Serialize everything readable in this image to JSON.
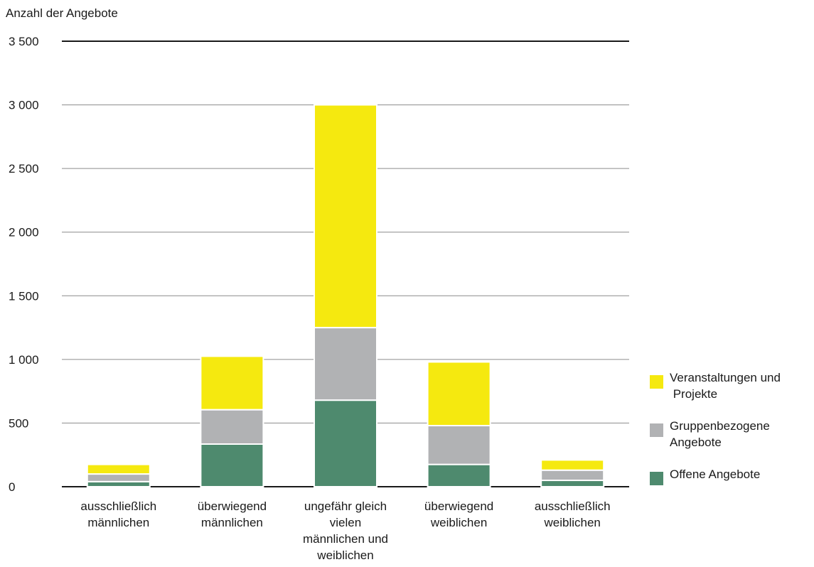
{
  "chart_data": {
    "type": "bar",
    "stacked": true,
    "ylabel": "Anzahl der Angebote",
    "ylim": [
      0,
      3500
    ],
    "yticks": [
      0,
      500,
      1000,
      1500,
      2000,
      2500,
      3000,
      3500
    ],
    "ytick_labels": [
      "0",
      "500",
      "1 000",
      "1 500",
      "2 000",
      "2 500",
      "3 000",
      "3 500"
    ],
    "grid": true,
    "legend_position": "right",
    "categories": [
      [
        "ausschließlich",
        "männlichen"
      ],
      [
        "überwiegend",
        "männlichen"
      ],
      [
        "ungefähr gleich",
        "vielen",
        "männlichen und",
        "weiblichen"
      ],
      [
        "überwiegend",
        "weiblichen"
      ],
      [
        "ausschließlich",
        "weiblichen"
      ]
    ],
    "series": [
      {
        "name": "Offene Angebote",
        "color": "#4e8a6e",
        "values": [
          40,
          335,
          680,
          175,
          50
        ]
      },
      {
        "name": "Gruppenbezogene Angebote",
        "color": "#b1b2b4",
        "values": [
          60,
          270,
          570,
          305,
          80
        ]
      },
      {
        "name": "Veranstaltungen und Projekte",
        "color": "#f5e90f",
        "values": [
          75,
          420,
          1750,
          500,
          80
        ]
      }
    ]
  },
  "legend": [
    {
      "line1": "Veranstaltungen und",
      "line2": " Projekte",
      "color": "#f5e90f"
    },
    {
      "line1": "Gruppenbezogene",
      "line2": "Angebote",
      "color": "#b1b2b4"
    },
    {
      "line1": "Offene Angebote",
      "line2": "",
      "color": "#4e8a6e"
    }
  ]
}
